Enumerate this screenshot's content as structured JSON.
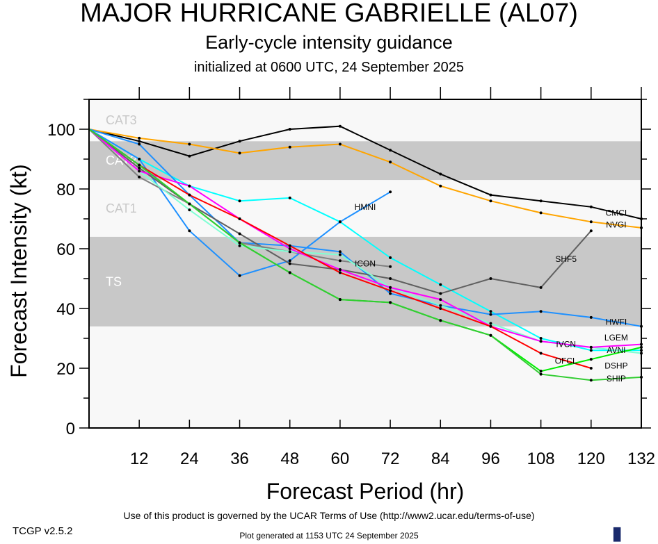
{
  "header": {
    "title": "MAJOR HURRICANE GABRIELLE (AL07)",
    "subtitle": "Early-cycle intensity guidance",
    "init": "initialized at 0600 UTC, 24 September 2025"
  },
  "footer": {
    "terms": "Use of this product is governed by the UCAR Terms of Use (http://www2.ucar.edu/terms-of-use)",
    "generated": "Plot generated at 1153 UTC  24 September 2025",
    "version": "TCGP v2.5.2",
    "logo": "NCAR"
  },
  "chart_data": {
    "type": "line",
    "xlabel": "Forecast Period (hr)",
    "ylabel": "Forecast Intensity (kt)",
    "xlim": [
      0,
      132
    ],
    "ylim": [
      0,
      110
    ],
    "xticks": [
      12,
      24,
      36,
      48,
      60,
      72,
      84,
      96,
      108,
      120,
      132
    ],
    "yticks": [
      0,
      20,
      40,
      60,
      80,
      100
    ],
    "bands": [
      {
        "name": "TS",
        "range": [
          34,
          64
        ],
        "color": "#c8c8c8"
      },
      {
        "name": "CAT1",
        "range": [
          64,
          83
        ],
        "color": "#f8f8f8"
      },
      {
        "name": "CAT2",
        "range": [
          83,
          96
        ],
        "color": "#c8c8c8"
      },
      {
        "name": "CAT3",
        "range": [
          96,
          113
        ],
        "color": "#f8f8f8"
      }
    ],
    "x": [
      0,
      12,
      24,
      36,
      48,
      60,
      72,
      84,
      96,
      108,
      120,
      132
    ],
    "series": [
      {
        "name": "CMCI",
        "color": "#000000",
        "values": [
          100,
          96,
          91,
          96,
          100,
          101,
          93,
          85,
          78,
          76,
          74,
          70
        ]
      },
      {
        "name": "NVGI",
        "color": "#ffa500",
        "values": [
          100,
          97,
          95,
          92,
          94,
          95,
          89,
          81,
          76,
          72,
          69,
          67
        ]
      },
      {
        "name": "AVNI",
        "color": "#00ffff",
        "values": [
          100,
          90,
          81,
          76,
          77,
          69,
          57,
          48,
          39,
          30,
          26,
          26
        ]
      },
      {
        "name": "HWFI",
        "color": "#1e90ff",
        "values": [
          100,
          95,
          78,
          62,
          61,
          59,
          45,
          41,
          38,
          39,
          37,
          34
        ]
      },
      {
        "name": "HMNI",
        "color": "#1e90ff",
        "values": [
          100,
          90,
          66,
          51,
          56,
          69,
          79,
          null,
          null,
          null,
          null,
          null
        ]
      },
      {
        "name": "SHF5",
        "color": "#606060",
        "values": [
          100,
          87,
          75,
          65,
          55,
          53,
          50,
          45,
          50,
          47,
          66,
          null
        ]
      },
      {
        "name": "ICON",
        "color": "#808080",
        "values": [
          100,
          84,
          75,
          62,
          59,
          56,
          54,
          null,
          null,
          null,
          null,
          null
        ]
      },
      {
        "name": "LGEM",
        "color": "#7fffd4",
        "values": [
          100,
          86,
          73,
          61,
          59,
          58,
          47,
          41,
          35,
          29,
          27,
          25
        ]
      },
      {
        "name": "IVCN",
        "color": "#ff00ff",
        "values": [
          100,
          86,
          81,
          70,
          60,
          53,
          47,
          43,
          34,
          29,
          27,
          28
        ]
      },
      {
        "name": "OFCL",
        "color": "#ff0000",
        "values": [
          100,
          88,
          78,
          70,
          61,
          52,
          46,
          40,
          34,
          25,
          20,
          null
        ]
      },
      {
        "name": "DSHP",
        "color": "#00ee00",
        "values": [
          100,
          88,
          75,
          62,
          52,
          43,
          42,
          36,
          31,
          19,
          23,
          27
        ]
      },
      {
        "name": "SHIP",
        "color": "#32cd32",
        "values": [
          100,
          88,
          75,
          62,
          52,
          43,
          42,
          36,
          31,
          18,
          16,
          17
        ]
      }
    ]
  }
}
